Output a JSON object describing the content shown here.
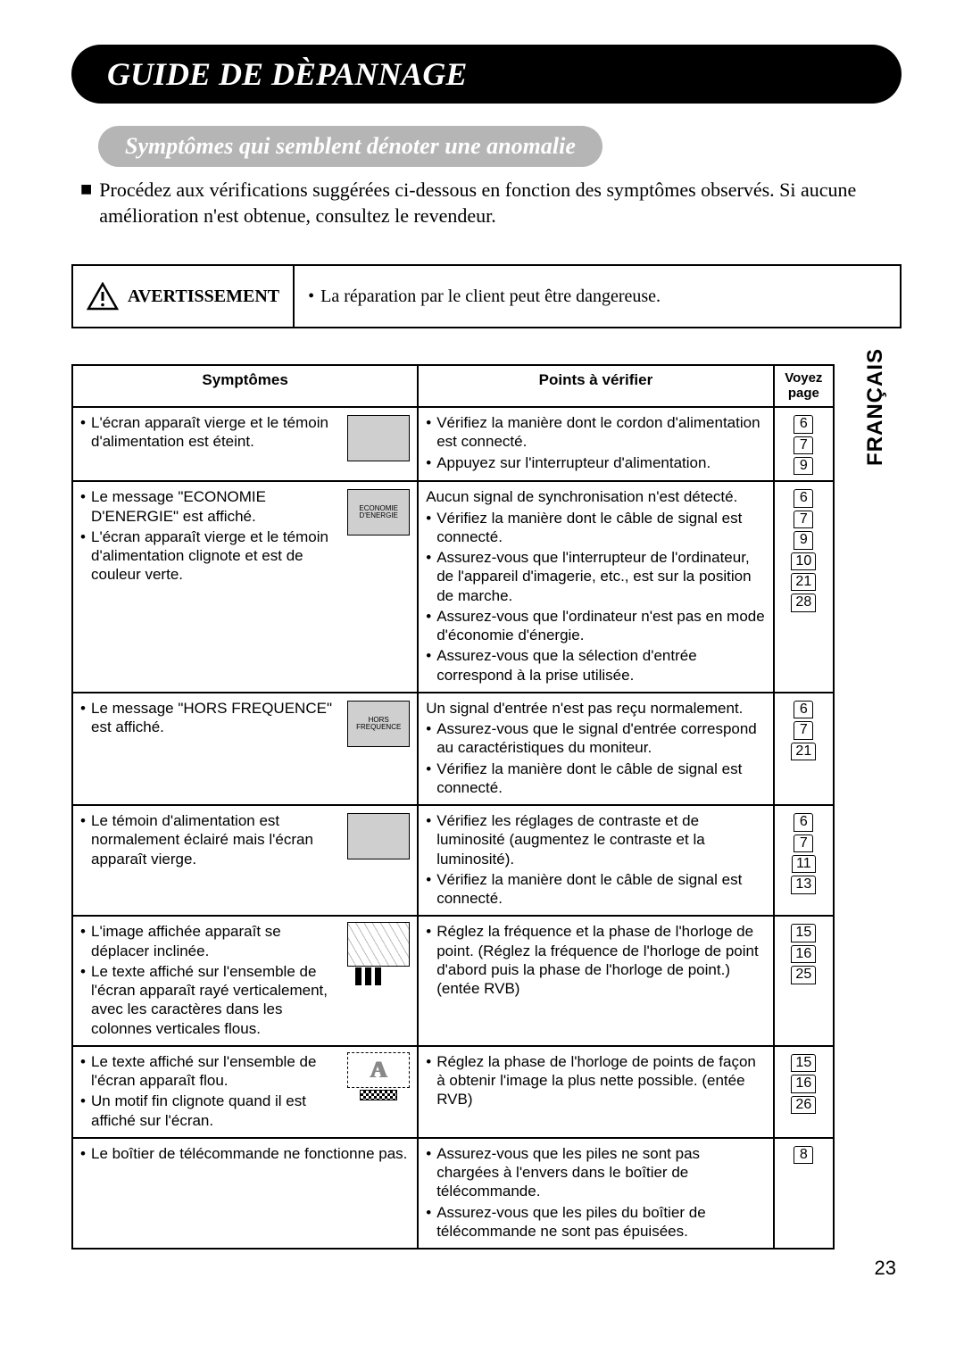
{
  "title": "GUIDE DE DÈPANNAGE",
  "subtitle": "Symptômes qui semblent dénoter une anomalie",
  "intro": "Procédez aux vérifications suggérées ci-dessous en fonction des symptômes observés. Si aucune amélioration n'est obtenue, consultez le revendeur.",
  "warning_label": "AVERTISSEMENT",
  "warning_text": "La réparation par le client peut être dangereuse.",
  "side_tab": "FRANÇAIS",
  "headers": {
    "symptoms": "Symptômes",
    "points": "Points à vérifier",
    "page": "Voyez page"
  },
  "rows": [
    {
      "symptoms": [
        "L'écran apparaît vierge et le témoin d'alimentation est éteint."
      ],
      "screen_text": "",
      "screen_style": "grey",
      "points_intro": "",
      "points": [
        "Vérifiez la manière dont le cordon d'alimentation est connecté.",
        "Appuyez sur l'interrupteur d'alimentation."
      ],
      "pages": [
        "6",
        "7",
        "9"
      ]
    },
    {
      "symptoms": [
        "Le message \"ECONOMIE D'ENERGIE\" est affiché.",
        "L'écran apparaît vierge et le témoin d'alimentation clignote et est de couleur verte."
      ],
      "screen_text": "ECONOMIE D'ENERGIE",
      "screen_style": "grey",
      "points_intro": "Aucun signal de synchronisation n'est détecté.",
      "points": [
        "Vérifiez la manière dont le câble de signal est connecté.",
        "Assurez-vous que l'interrupteur de l'ordinateur, de l'appareil d'imagerie, etc., est sur la position de marche.",
        "Assurez-vous que l'ordinateur n'est pas en mode d'économie d'énergie.",
        "Assurez-vous que la sélection d'entrée correspond à la prise utilisée."
      ],
      "pages": [
        "6",
        "7",
        "9",
        "10",
        "21",
        "28"
      ]
    },
    {
      "symptoms": [
        "Le message \"HORS FREQUENCE\" est affiché."
      ],
      "screen_text": "HORS FREQUENCE",
      "screen_style": "grey",
      "points_intro": "Un signal d'entrée n'est pas reçu normalement.",
      "points": [
        "Assurez-vous que le signal d'entrée correspond au caractéristiques du moniteur.",
        "Vérifiez la manière dont le câble de signal est connecté."
      ],
      "pages": [
        "6",
        "7",
        "21"
      ]
    },
    {
      "symptoms": [
        "Le témoin d'alimentation est normalement éclairé mais l'écran apparaît vierge."
      ],
      "screen_text": "",
      "screen_style": "grey",
      "points_intro": "",
      "points": [
        "Vérifiez les réglages de contraste et de luminosité (augmentez le contraste et la luminosité).",
        "Vérifiez la manière dont le câble de signal est connecté."
      ],
      "pages": [
        "6",
        "7",
        "11",
        "13"
      ]
    },
    {
      "symptoms": [
        "L'image affichée apparaît se déplacer inclinée.",
        "Le texte affiché sur l'ensemble de l'écran apparaît rayé verticalement, avec les caractères dans les colonnes verticales flous."
      ],
      "screen_text": "",
      "screen_style": "skew",
      "points_intro": "",
      "points": [
        "Réglez la fréquence et la phase de l'horloge de point. (Réglez la fréquence de l'horloge de point d'abord puis la phase de l'horloge de point.) (entée RVB)"
      ],
      "pages": [
        "15",
        "16",
        "25"
      ]
    },
    {
      "symptoms": [
        "Le texte affiché sur l'ensemble de l'écran apparaît flou.",
        "Un motif fin clignote quand il est affiché sur l'écran."
      ],
      "screen_text": "A",
      "screen_style": "blur",
      "points_intro": "",
      "points": [
        "Réglez la phase de l'horloge de points de façon à obtenir l'image la plus nette possible. (entée RVB)"
      ],
      "pages": [
        "15",
        "16",
        "26"
      ]
    },
    {
      "symptoms": [
        "Le boîtier de télécommande ne fonctionne pas."
      ],
      "screen_text": "",
      "screen_style": "none",
      "points_intro": "",
      "points": [
        "Assurez-vous que les piles ne sont pas chargées à l'envers dans le boîtier de télécommande.",
        "Assurez-vous que les piles du boîtier de télécommande ne sont pas épuisées."
      ],
      "pages": [
        "8"
      ]
    }
  ],
  "page_number": "23"
}
